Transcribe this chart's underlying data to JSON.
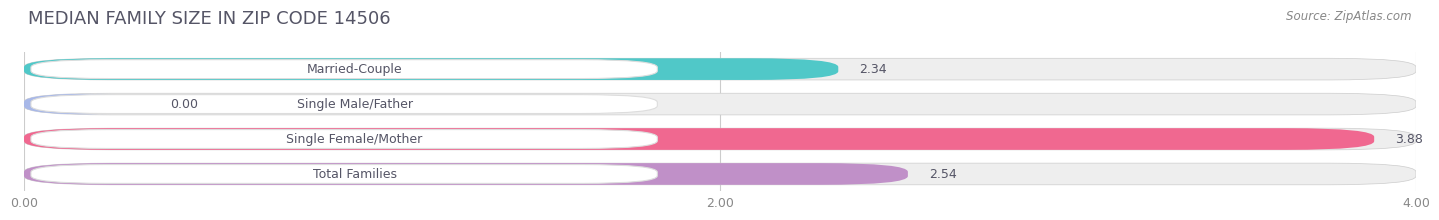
{
  "title": "MEDIAN FAMILY SIZE IN ZIP CODE 14506",
  "source": "Source: ZipAtlas.com",
  "categories": [
    "Married-Couple",
    "Single Male/Father",
    "Single Female/Mother",
    "Total Families"
  ],
  "values": [
    2.34,
    0.0,
    3.88,
    2.54
  ],
  "bar_colors": [
    "#50c8c8",
    "#a8b8e8",
    "#f06890",
    "#c090c8"
  ],
  "bar_labels": [
    "2.34",
    "0.00",
    "3.88",
    "2.54"
  ],
  "xlim": [
    0,
    4.0
  ],
  "xticks": [
    0.0,
    2.0,
    4.0
  ],
  "xtick_labels": [
    "0.00",
    "2.00",
    "4.00"
  ],
  "background_color": "#ffffff",
  "bar_background_color": "#eeeeee",
  "title_fontsize": 13,
  "label_fontsize": 9,
  "tick_fontsize": 9,
  "source_fontsize": 8.5,
  "title_color": "#555566",
  "source_color": "#888888",
  "label_text_color": "#555566",
  "value_text_color": "#555566"
}
